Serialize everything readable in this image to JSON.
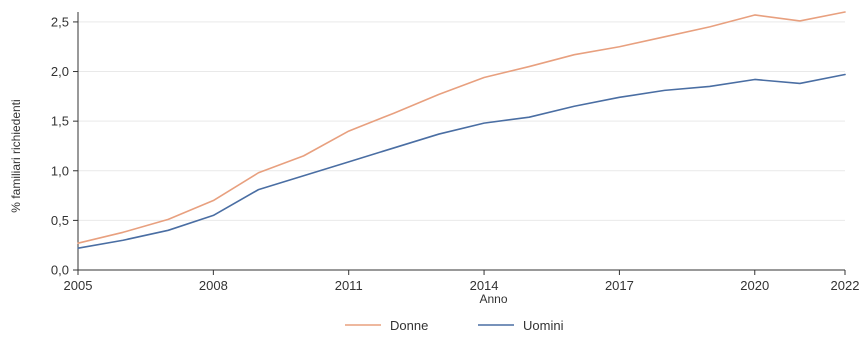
{
  "chart_data": {
    "type": "line",
    "title": "",
    "xlabel": "Anno",
    "ylabel": "% familiari richiedenti",
    "x": [
      2005,
      2006,
      2007,
      2008,
      2009,
      2010,
      2011,
      2012,
      2013,
      2014,
      2015,
      2016,
      2017,
      2018,
      2019,
      2020,
      2021,
      2022
    ],
    "xlim": [
      2005,
      2022
    ],
    "ylim": [
      0,
      2.6
    ],
    "x_ticks": [
      2005,
      2008,
      2011,
      2014,
      2017,
      2020,
      2022
    ],
    "x_tick_labels": [
      "2005",
      "2008",
      "2011",
      "2014",
      "2017",
      "2020",
      "2022"
    ],
    "y_ticks": [
      0,
      0.5,
      1.0,
      1.5,
      2.0,
      2.5
    ],
    "y_tick_labels": [
      "0,0",
      "0,5",
      "1,0",
      "1,5",
      "2,0",
      "2,5"
    ],
    "grid": true,
    "legend_position": "bottom-center",
    "series": [
      {
        "name": "Donne",
        "color": "#e8a07f",
        "values": [
          0.27,
          0.38,
          0.51,
          0.7,
          0.98,
          1.15,
          1.4,
          1.58,
          1.77,
          1.94,
          2.05,
          2.17,
          2.25,
          2.35,
          2.45,
          2.57,
          2.51,
          2.6
        ]
      },
      {
        "name": "Uomini",
        "color": "#4a6ea3",
        "values": [
          0.22,
          0.3,
          0.4,
          0.55,
          0.81,
          0.95,
          1.09,
          1.23,
          1.37,
          1.48,
          1.54,
          1.65,
          1.74,
          1.81,
          1.85,
          1.92,
          1.88,
          1.97
        ]
      }
    ]
  }
}
